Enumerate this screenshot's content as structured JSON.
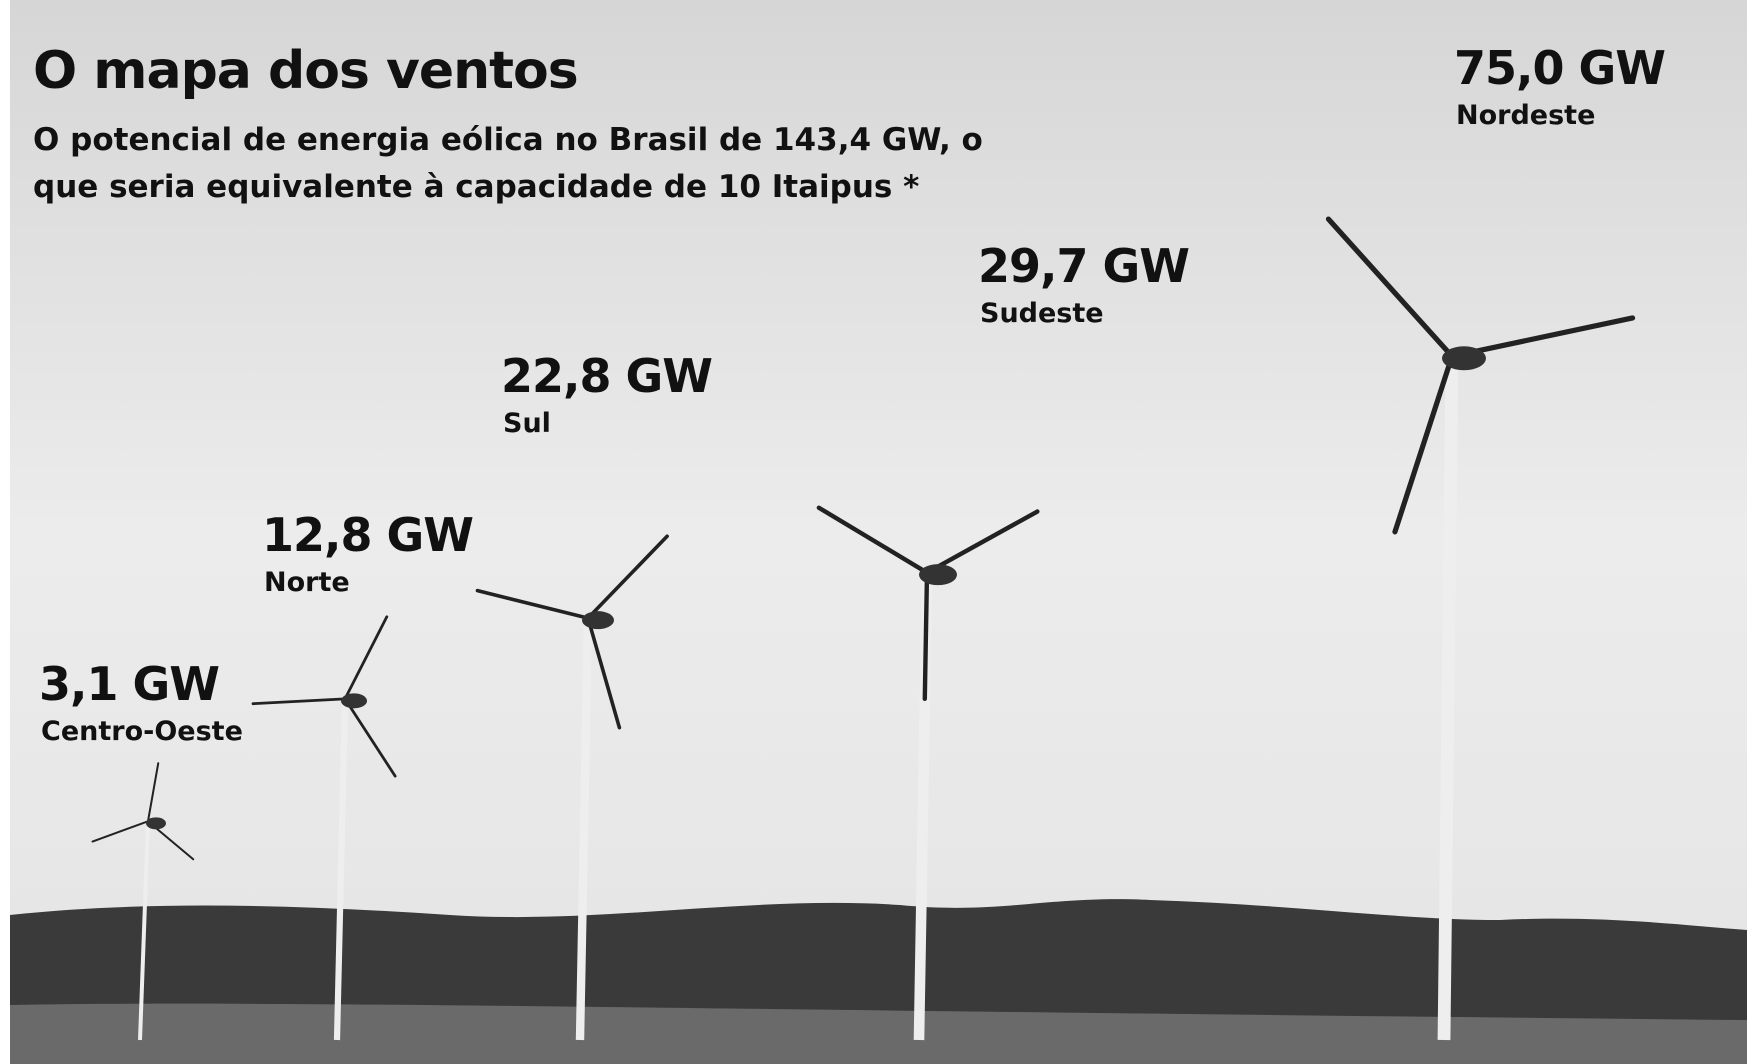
{
  "chart_data": {
    "type": "turbine",
    "title": "O mapa dos ventos",
    "subtitle": [
      "O potencial de energia eólica no Brasil de 143,4 GW, o",
      "que seria equivalente à capacidade de 10 Itaipus *"
    ],
    "categories": [
      "Centro-Oeste",
      "Norte",
      "Sul",
      "Sudeste",
      "Nordeste"
    ],
    "values": [
      3.1,
      12.8,
      22.8,
      29.7,
      75.0
    ],
    "value_labels": [
      "3,1 GW",
      "12,8 GW",
      "22,8 GW",
      "29,7 GW",
      "75,0 GW"
    ],
    "color": "#eeeeee"
  }
}
